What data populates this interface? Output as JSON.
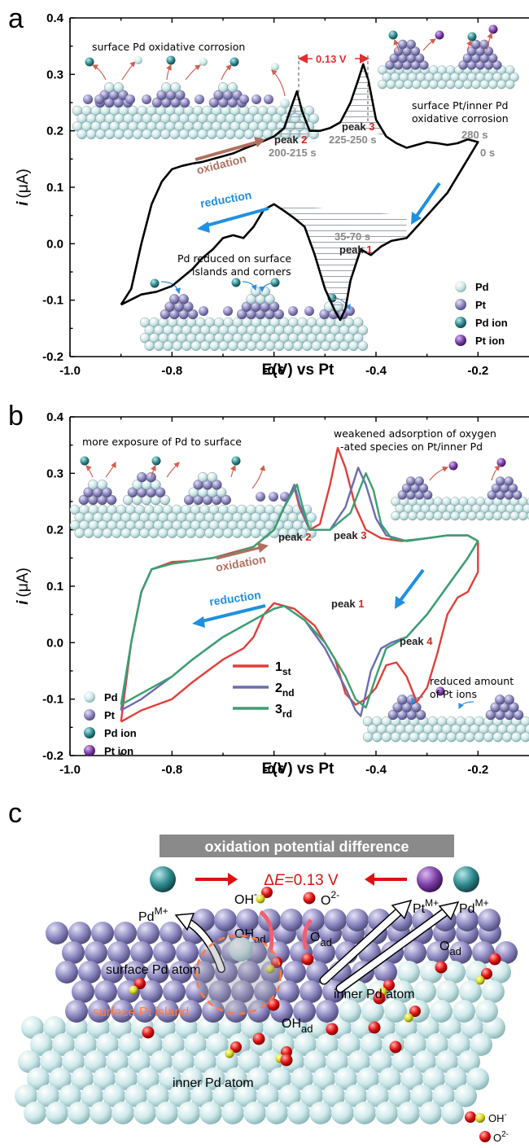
{
  "chart_data": [
    {
      "panel": "a",
      "type": "line",
      "xlabel_main": "E(V) vs Pt",
      "ylabel_italic": "i",
      "ylabel_unit": "(μA)",
      "xlim": [
        -1.0,
        -0.1
      ],
      "ylim": [
        -0.2,
        0.4
      ],
      "x_ticks": [
        "-1.0",
        "-0.8",
        "-0.6",
        "-0.4",
        "-0.2"
      ],
      "y_ticks": [
        "-0.2",
        "-0.1",
        "0.0",
        "0.1",
        "0.2",
        "0.3",
        "0.4"
      ],
      "series": [
        {
          "color": "#000000",
          "points": [
            [
              -0.9,
              -0.108
            ],
            [
              -0.88,
              -0.08
            ],
            [
              -0.86,
              0.0
            ],
            [
              -0.84,
              0.07
            ],
            [
              -0.82,
              0.11
            ],
            [
              -0.8,
              0.132
            ],
            [
              -0.78,
              0.138
            ],
            [
              -0.76,
              0.142
            ],
            [
              -0.74,
              0.145
            ],
            [
              -0.72,
              0.15
            ],
            [
              -0.7,
              0.155
            ],
            [
              -0.68,
              0.16
            ],
            [
              -0.66,
              0.168
            ],
            [
              -0.64,
              0.175
            ],
            [
              -0.62,
              0.182
            ],
            [
              -0.6,
              0.19
            ],
            [
              -0.58,
              0.205
            ],
            [
              -0.565,
              0.245
            ],
            [
              -0.555,
              0.27
            ],
            [
              -0.545,
              0.235
            ],
            [
              -0.53,
              0.2
            ],
            [
              -0.51,
              0.2
            ],
            [
              -0.49,
              0.205
            ],
            [
              -0.47,
              0.215
            ],
            [
              -0.45,
              0.25
            ],
            [
              -0.435,
              0.29
            ],
            [
              -0.425,
              0.318
            ],
            [
              -0.415,
              0.29
            ],
            [
              -0.4,
              0.22
            ],
            [
              -0.38,
              0.19
            ],
            [
              -0.36,
              0.178
            ],
            [
              -0.34,
              0.17
            ],
            [
              -0.32,
              0.175
            ],
            [
              -0.3,
              0.18
            ],
            [
              -0.28,
              0.178
            ],
            [
              -0.26,
              0.175
            ],
            [
              -0.24,
              0.178
            ],
            [
              -0.22,
              0.185
            ],
            [
              -0.2,
              0.18
            ],
            [
              -0.22,
              0.15
            ],
            [
              -0.26,
              0.09
            ],
            [
              -0.3,
              0.05
            ],
            [
              -0.34,
              0.01
            ],
            [
              -0.37,
              0.005
            ],
            [
              -0.39,
              -0.005
            ],
            [
              -0.41,
              -0.02
            ],
            [
              -0.43,
              -0.01
            ],
            [
              -0.45,
              -0.065
            ],
            [
              -0.46,
              -0.115
            ],
            [
              -0.47,
              -0.135
            ],
            [
              -0.48,
              -0.12
            ],
            [
              -0.5,
              -0.08
            ],
            [
              -0.52,
              -0.02
            ],
            [
              -0.54,
              0.03
            ],
            [
              -0.56,
              0.045
            ],
            [
              -0.58,
              0.058
            ],
            [
              -0.6,
              0.07
            ],
            [
              -0.62,
              0.06
            ],
            [
              -0.64,
              0.03
            ],
            [
              -0.66,
              0.01
            ],
            [
              -0.68,
              0.015
            ],
            [
              -0.7,
              0.01
            ],
            [
              -0.72,
              -0.01
            ],
            [
              -0.74,
              -0.025
            ],
            [
              -0.76,
              -0.045
            ],
            [
              -0.78,
              -0.06
            ],
            [
              -0.8,
              -0.075
            ],
            [
              -0.83,
              -0.085
            ],
            [
              -0.86,
              -0.09
            ],
            [
              -0.9,
              -0.108
            ]
          ]
        }
      ],
      "annotations": {
        "peak1_word": "peak",
        "peak1_num": "1",
        "peak2_word": "peak",
        "peak2_num": "2",
        "peak3_word": "peak",
        "peak3_num": "3",
        "t_peak2": "200-215 s",
        "t_peak3": "225-250 s",
        "t_peak1": "35-70 s",
        "t_280": "280 s",
        "t_0": "0 s",
        "delta": "0.13 V",
        "oxidation": "oxidation",
        "reduction": "reduction",
        "note_top_left": "surface Pd oxidative corrosion",
        "note_top_right_1": "surface Pt/inner Pd",
        "note_top_right_2": "oxidative corrosion",
        "note_bottom_1": "Pd reduced on surface",
        "note_bottom_2": "islands and corners"
      },
      "legend": [
        {
          "label": "Pd",
          "color": "#cfe9ea"
        },
        {
          "label": "Pt",
          "color": "#8c87c0"
        },
        {
          "label": "Pd ion",
          "color": "#2f8a8e"
        },
        {
          "label": "Pt  ion",
          "color": "#7d3fa8"
        }
      ]
    },
    {
      "panel": "b",
      "type": "line",
      "xlabel_main": "E(V) vs Pt",
      "ylabel_italic": "i",
      "ylabel_unit": "(μA)",
      "xlim": [
        -1.0,
        -0.1
      ],
      "ylim": [
        -0.2,
        0.4
      ],
      "x_ticks": [
        "-1.0",
        "-0.8",
        "-0.6",
        "-0.4",
        "-0.2"
      ],
      "y_ticks": [
        "-0.2",
        "-0.1",
        "0.0",
        "0.1",
        "0.2",
        "0.3",
        "0.4"
      ],
      "series": [
        {
          "name": "1",
          "sub": "st",
          "color": "#e0403a",
          "points": [
            [
              -0.9,
              -0.14
            ],
            [
              -0.88,
              0.0
            ],
            [
              -0.86,
              0.09
            ],
            [
              -0.84,
              0.13
            ],
            [
              -0.8,
              0.143
            ],
            [
              -0.76,
              0.145
            ],
            [
              -0.72,
              0.15
            ],
            [
              -0.68,
              0.16
            ],
            [
              -0.64,
              0.17
            ],
            [
              -0.6,
              0.2
            ],
            [
              -0.58,
              0.24
            ],
            [
              -0.56,
              0.275
            ],
            [
              -0.55,
              0.24
            ],
            [
              -0.53,
              0.2
            ],
            [
              -0.51,
              0.21
            ],
            [
              -0.49,
              0.28
            ],
            [
              -0.475,
              0.345
            ],
            [
              -0.46,
              0.31
            ],
            [
              -0.44,
              0.24
            ],
            [
              -0.42,
              0.2
            ],
            [
              -0.39,
              0.185
            ],
            [
              -0.35,
              0.18
            ],
            [
              -0.3,
              0.185
            ],
            [
              -0.26,
              0.19
            ],
            [
              -0.22,
              0.19
            ],
            [
              -0.2,
              0.18
            ],
            [
              -0.2,
              0.125
            ],
            [
              -0.22,
              0.09
            ],
            [
              -0.24,
              0.08
            ],
            [
              -0.26,
              0.05
            ],
            [
              -0.28,
              -0.02
            ],
            [
              -0.3,
              -0.08
            ],
            [
              -0.32,
              -0.105
            ],
            [
              -0.34,
              -0.06
            ],
            [
              -0.36,
              -0.035
            ],
            [
              -0.38,
              -0.04
            ],
            [
              -0.4,
              -0.08
            ],
            [
              -0.42,
              -0.1
            ],
            [
              -0.44,
              -0.11
            ],
            [
              -0.46,
              -0.09
            ],
            [
              -0.48,
              -0.03
            ],
            [
              -0.52,
              0.03
            ],
            [
              -0.56,
              0.06
            ],
            [
              -0.6,
              0.07
            ],
            [
              -0.62,
              0.05
            ],
            [
              -0.64,
              0.01
            ],
            [
              -0.66,
              -0.01
            ],
            [
              -0.7,
              -0.03
            ],
            [
              -0.76,
              -0.07
            ],
            [
              -0.8,
              -0.1
            ],
            [
              -0.86,
              -0.12
            ],
            [
              -0.9,
              -0.14
            ]
          ]
        },
        {
          "name": "2",
          "sub": "nd",
          "color": "#6c6cb0",
          "points": [
            [
              -0.9,
              -0.12
            ],
            [
              -0.88,
              0.0
            ],
            [
              -0.86,
              0.09
            ],
            [
              -0.84,
              0.13
            ],
            [
              -0.8,
              0.14
            ],
            [
              -0.76,
              0.145
            ],
            [
              -0.72,
              0.15
            ],
            [
              -0.68,
              0.158
            ],
            [
              -0.64,
              0.17
            ],
            [
              -0.6,
              0.2
            ],
            [
              -0.58,
              0.24
            ],
            [
              -0.56,
              0.28
            ],
            [
              -0.55,
              0.245
            ],
            [
              -0.53,
              0.2
            ],
            [
              -0.49,
              0.2
            ],
            [
              -0.46,
              0.24
            ],
            [
              -0.435,
              0.31
            ],
            [
              -0.42,
              0.28
            ],
            [
              -0.4,
              0.22
            ],
            [
              -0.38,
              0.19
            ],
            [
              -0.34,
              0.18
            ],
            [
              -0.3,
              0.185
            ],
            [
              -0.26,
              0.19
            ],
            [
              -0.22,
              0.19
            ],
            [
              -0.2,
              0.18
            ],
            [
              -0.22,
              0.15
            ],
            [
              -0.26,
              0.1
            ],
            [
              -0.3,
              0.05
            ],
            [
              -0.34,
              0.01
            ],
            [
              -0.37,
              0.0
            ],
            [
              -0.39,
              -0.01
            ],
            [
              -0.41,
              -0.05
            ],
            [
              -0.43,
              -0.13
            ],
            [
              -0.44,
              -0.12
            ],
            [
              -0.46,
              -0.08
            ],
            [
              -0.5,
              -0.01
            ],
            [
              -0.54,
              0.04
            ],
            [
              -0.58,
              0.065
            ],
            [
              -0.6,
              0.06
            ],
            [
              -0.64,
              0.04
            ],
            [
              -0.7,
              0.01
            ],
            [
              -0.76,
              -0.03
            ],
            [
              -0.8,
              -0.06
            ],
            [
              -0.86,
              -0.1
            ],
            [
              -0.9,
              -0.12
            ]
          ]
        },
        {
          "name": "3",
          "sub": "rd",
          "color": "#3aa070",
          "points": [
            [
              -0.9,
              -0.11
            ],
            [
              -0.88,
              0.0
            ],
            [
              -0.86,
              0.09
            ],
            [
              -0.84,
              0.13
            ],
            [
              -0.8,
              0.14
            ],
            [
              -0.76,
              0.145
            ],
            [
              -0.72,
              0.15
            ],
            [
              -0.68,
              0.158
            ],
            [
              -0.64,
              0.17
            ],
            [
              -0.6,
              0.2
            ],
            [
              -0.58,
              0.24
            ],
            [
              -0.555,
              0.28
            ],
            [
              -0.545,
              0.245
            ],
            [
              -0.53,
              0.2
            ],
            [
              -0.49,
              0.2
            ],
            [
              -0.45,
              0.23
            ],
            [
              -0.42,
              0.3
            ],
            [
              -0.405,
              0.27
            ],
            [
              -0.39,
              0.21
            ],
            [
              -0.37,
              0.185
            ],
            [
              -0.34,
              0.18
            ],
            [
              -0.3,
              0.185
            ],
            [
              -0.26,
              0.19
            ],
            [
              -0.22,
              0.19
            ],
            [
              -0.2,
              0.18
            ],
            [
              -0.22,
              0.15
            ],
            [
              -0.26,
              0.1
            ],
            [
              -0.3,
              0.05
            ],
            [
              -0.34,
              0.01
            ],
            [
              -0.36,
              0.0
            ],
            [
              -0.38,
              -0.01
            ],
            [
              -0.4,
              -0.06
            ],
            [
              -0.42,
              -0.115
            ],
            [
              -0.44,
              -0.1
            ],
            [
              -0.46,
              -0.06
            ],
            [
              -0.5,
              0.0
            ],
            [
              -0.54,
              0.04
            ],
            [
              -0.58,
              0.065
            ],
            [
              -0.6,
              0.06
            ],
            [
              -0.64,
              0.04
            ],
            [
              -0.7,
              0.01
            ],
            [
              -0.76,
              -0.03
            ],
            [
              -0.8,
              -0.06
            ],
            [
              -0.86,
              -0.09
            ],
            [
              -0.9,
              -0.11
            ]
          ]
        }
      ],
      "annotations": {
        "peak1_word": "peak",
        "peak1_num": "1",
        "peak2_word": "peak",
        "peak2_num": "2",
        "peak3_word": "peak",
        "peak3_num": "3",
        "peak4_word": "peak",
        "peak4_num": "4",
        "oxidation": "oxidation",
        "reduction": "reduction",
        "note_top_left": "more exposure of Pd to surface",
        "note_top_right_1": "weakened adsorption of oxygen",
        "note_top_right_2": "-ated species on Pt/inner Pd",
        "note_bottom_1": "reduced amount",
        "note_bottom_2": "of Pt ions"
      },
      "legend": [
        {
          "label": "Pd",
          "color": "#cfe9ea"
        },
        {
          "label": "Pt",
          "color": "#8c87c0"
        },
        {
          "label": "Pd ion",
          "color": "#2f8a8e"
        },
        {
          "label": "Pt  ion",
          "color": "#7d3fa8"
        }
      ]
    }
  ],
  "panel_letters": {
    "a": "a",
    "b": "b",
    "c": "c"
  },
  "panel_c": {
    "banner": "oxidation potential difference",
    "delta_prefix": "Δ",
    "delta_italic": "E",
    "delta_value": "=0.13 V",
    "pd_m": "Pd",
    "pd_m_sup": "M+",
    "oh_minus": "OH",
    "oh_minus_sup": "-",
    "o2": "O",
    "o2_sup": "2-",
    "pt_m": "Pt",
    "pt_m_sup": "M+",
    "pd_m2": "Pd",
    "pd_m2_sup": "M+",
    "oh_ad": "OH",
    "oh_ad_sub": "ad",
    "o_ad1": "O",
    "o_ad1_sub": "ad",
    "o_ad2": "O",
    "o_ad2_sub": "ad",
    "oh_ad2": "OH",
    "oh_ad2_sub": "ad",
    "surface_pd_atom": "surface Pd atom",
    "inner_pd_atom_1": "inner Pd atom",
    "surface_pt_island": "surface Pt island",
    "inner_pd_atom_2": "inner Pd atom",
    "legend_oh": "OH",
    "legend_oh_sup": "-",
    "legend_o": "O",
    "legend_o_sup": "2-",
    "colors": {
      "pd": "#cfe9ea",
      "pt": "#8c87c0",
      "pd_ion": "#2f8a8e",
      "pt_ion": "#7d3fa8",
      "o": "#e01010",
      "h": "#d8d820",
      "island": "#ff7a40"
    }
  }
}
